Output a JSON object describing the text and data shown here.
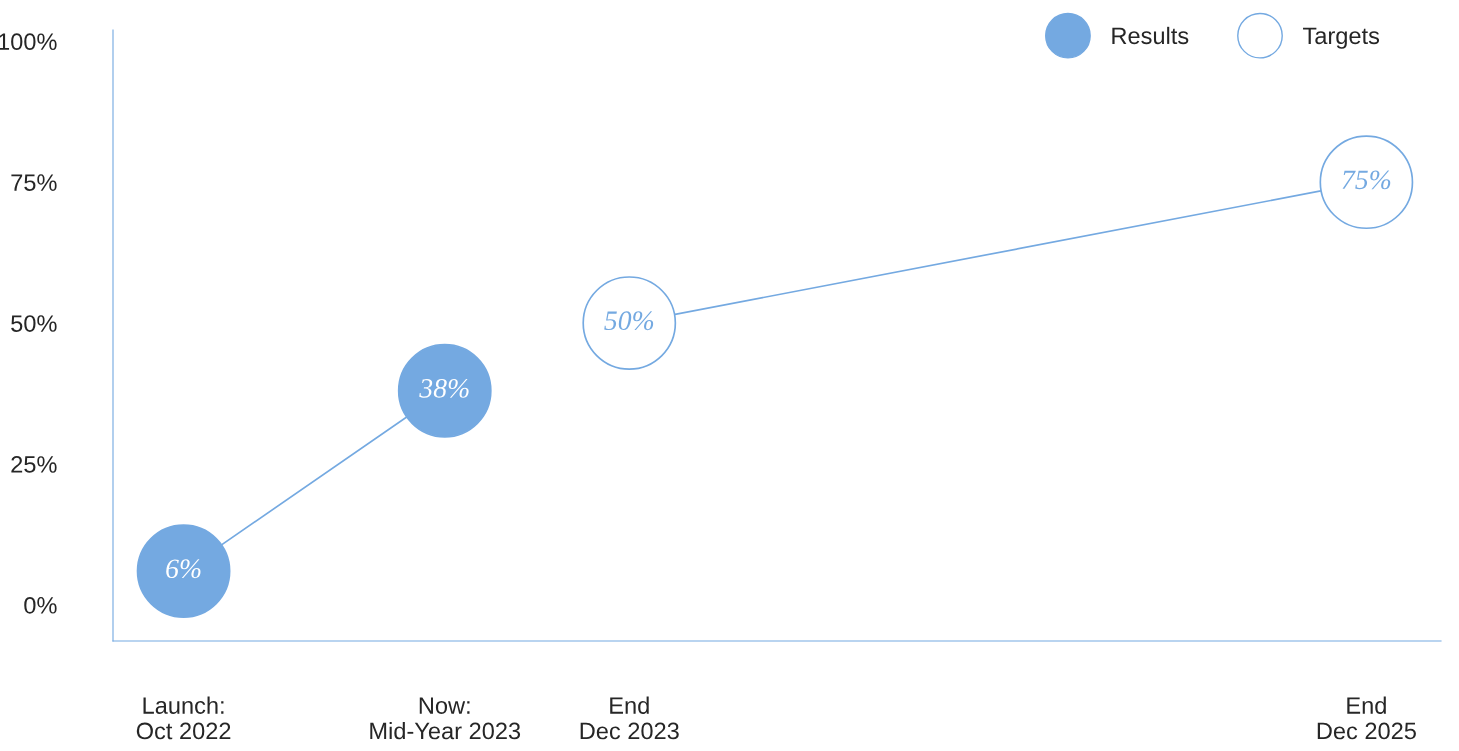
{
  "chart_data": {
    "type": "bubble",
    "xlim": [
      "2022-08-06",
      "2026-03-15"
    ],
    "xticks": [
      {
        "value": "2022-10-15",
        "label": "Launch:\nOct 2022"
      },
      {
        "value": "2023-07-01",
        "label": "Now:\nMid-Year 2023"
      },
      {
        "value": "2023-12-31",
        "label": "End\nDec 2023"
      },
      {
        "value": "2025-12-31",
        "label": "End\nDec 2025"
      }
    ],
    "ylim": [
      -6.4,
      102
    ],
    "yticks": [
      {
        "value": 0,
        "label": "0%"
      },
      {
        "value": 25,
        "label": "25%"
      },
      {
        "value": 50,
        "label": "50%"
      },
      {
        "value": 75,
        "label": "75%"
      },
      {
        "value": 100,
        "label": "100%"
      }
    ],
    "series": [
      {
        "name": "Results",
        "color": "#74a9e1",
        "x": [
          "2022-10-15",
          "2023-07-01"
        ],
        "values": [
          6,
          38
        ],
        "sizes": [
          1,
          1
        ],
        "value_labels": [
          "6%",
          "38%"
        ]
      },
      {
        "name": "Targets",
        "color": "#74a9e1",
        "x": [
          "2023-12-31",
          "2025-12-31"
        ],
        "values": [
          50,
          75
        ],
        "sizes": [
          1,
          1
        ],
        "value_labels": [
          "50%",
          "75%"
        ]
      }
    ],
    "marker": "circle",
    "line_style": "solid",
    "grid": false,
    "legend": "top right"
  }
}
